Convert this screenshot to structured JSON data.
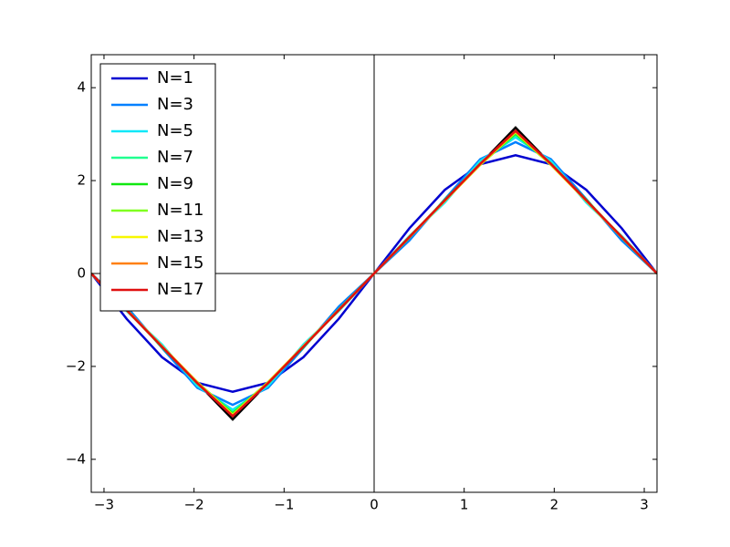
{
  "chart_data": {
    "type": "line",
    "x": [
      -3.1416,
      -2.7489,
      -2.3562,
      -1.9635,
      -1.5708,
      -1.1781,
      -0.7854,
      -0.3927,
      0,
      0.3927,
      0.7854,
      1.1781,
      1.5708,
      1.9635,
      2.3562,
      2.7489,
      3.1416
    ],
    "series": [
      {
        "color": "#000000",
        "values": [
          0,
          -0.7854,
          -1.5708,
          -2.3562,
          -3.1416,
          -2.3562,
          -1.5708,
          -0.7854,
          0,
          0.7854,
          1.5708,
          2.3562,
          3.1416,
          2.3562,
          1.5708,
          0.7854,
          0
        ]
      },
      {
        "name": "N=1",
        "color": "#0000d0",
        "values": [
          0,
          -0.9745,
          -1.8006,
          -2.3527,
          -2.5465,
          -2.3527,
          -1.8006,
          -0.9745,
          0,
          0.9745,
          1.8006,
          2.3527,
          2.5465,
          2.3527,
          1.8006,
          0.9745,
          0
        ]
      },
      {
        "name": "N=3",
        "color": "#0080ff",
        "values": [
          0,
          -0.7131,
          -1.6005,
          -2.461,
          -2.8294,
          -2.461,
          -1.6005,
          -0.7131,
          0,
          0.7131,
          1.6005,
          2.461,
          2.8294,
          2.461,
          1.6005,
          0.7131,
          0
        ]
      },
      {
        "name": "N=5",
        "color": "#10e8f8",
        "values": [
          0,
          -0.8072,
          -1.5285,
          -2.422,
          -2.9313,
          -2.422,
          -1.5285,
          -0.8072,
          0,
          0.8072,
          1.5285,
          2.422,
          2.9313,
          2.422,
          1.5285,
          0.8072,
          0
        ]
      },
      {
        "name": "N=7",
        "color": "#20ff90",
        "values": [
          0,
          -0.7873,
          -1.5652,
          -2.374,
          -2.9833,
          -2.374,
          -1.5652,
          -0.7873,
          0,
          0.7873,
          1.5652,
          2.374,
          2.9833,
          2.374,
          1.5652,
          0.7873,
          0
        ]
      },
      {
        "name": "N=9",
        "color": "#10e810",
        "values": [
          0,
          -0.7753,
          -1.5874,
          -2.345,
          -3.0147,
          -2.345,
          -1.5874,
          -0.7753,
          0,
          0.7753,
          1.5874,
          2.345,
          3.0147,
          2.345,
          1.5874,
          0.7753,
          0
        ]
      },
      {
        "name": "N=11",
        "color": "#80ff20",
        "values": [
          0,
          -0.7947,
          -1.5725,
          -2.3369,
          -3.0358,
          -2.3369,
          -1.5725,
          -0.7947,
          0,
          0.7947,
          1.5725,
          2.3369,
          3.0358,
          2.3369,
          1.5725,
          0.7947,
          0
        ]
      },
      {
        "name": "N=13",
        "color": "#f8f800",
        "values": [
          0,
          -0.7808,
          -1.5618,
          -2.3427,
          -3.0508,
          -2.3427,
          -1.5618,
          -0.7808,
          0,
          0.7808,
          1.5618,
          2.3427,
          3.0508,
          2.3427,
          1.5618,
          0.7808,
          0
        ]
      },
      {
        "name": "N=15",
        "color": "#ff8010",
        "values": [
          0,
          -0.7851,
          -1.5698,
          -2.3532,
          -3.0622,
          -2.3532,
          -1.5698,
          -0.7851,
          0,
          0.7851,
          1.5698,
          2.3532,
          3.0622,
          2.3532,
          1.5698,
          0.7851,
          0
        ]
      },
      {
        "name": "N=17",
        "color": "#e01010",
        "values": [
          0,
          -0.7885,
          -1.576,
          -2.3613,
          -3.071,
          -2.3613,
          -1.576,
          -0.7885,
          0,
          0.7885,
          1.576,
          2.3613,
          3.071,
          2.3613,
          1.576,
          0.7885,
          0
        ]
      }
    ],
    "xlim": [
      -3.1416,
      3.1416
    ],
    "ylim": [
      -4.71,
      4.71
    ],
    "xticks": [
      {
        "value": -3,
        "label": "−3"
      },
      {
        "value": -2,
        "label": "−2"
      },
      {
        "value": -1,
        "label": "−1"
      },
      0,
      1,
      2,
      3
    ],
    "yticks": [
      {
        "value": -4,
        "label": "−4"
      },
      {
        "value": -2,
        "label": "−2"
      },
      0,
      2,
      4
    ],
    "legend": "upper left",
    "grid": false
  }
}
